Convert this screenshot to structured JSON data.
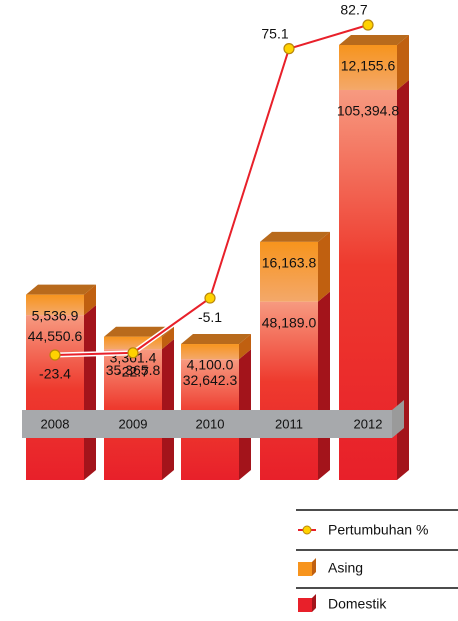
{
  "chart_data": {
    "type": "stacked-bar-line",
    "categories": [
      "2008",
      "2009",
      "2010",
      "2011",
      "2012"
    ],
    "series": [
      {
        "name": "Domestik",
        "color": "#e8202a",
        "values": [
          44550.6,
          35365.8,
          32642.3,
          48189.0,
          105394.8
        ],
        "value_labels": [
          "44,550.6",
          "35,365.8",
          "32,642.3",
          "48,189.0",
          "105,394.8"
        ]
      },
      {
        "name": "Asing",
        "color": "#f7941d",
        "values": [
          5536.9,
          3361.4,
          4100.0,
          16163.8,
          12155.6
        ],
        "value_labels": [
          "5,536.9",
          "3,361.4",
          "4,100.0",
          "16,163.8",
          "12,155.6"
        ]
      },
      {
        "name": "Pertumbuhan %",
        "color": "#e8202a",
        "marker_color": "#ffd200",
        "type": "line",
        "values": [
          -23.4,
          -22.7,
          -5.1,
          75.1,
          82.7
        ]
      }
    ]
  }
}
